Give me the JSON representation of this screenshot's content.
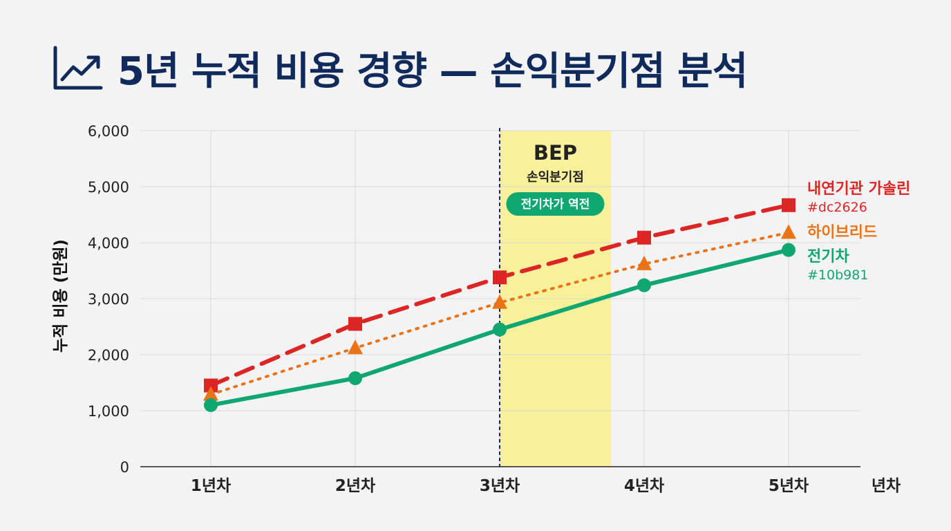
{
  "title": "5년 누적 비용 경향 — 손익분기점 분석",
  "title_icon": "trend-up-chart-icon",
  "chart_data": {
    "type": "line",
    "ylabel": "누적 비용 (만원)",
    "xunit": "년차",
    "categories": [
      "1년차",
      "2년차",
      "3년차",
      "4년차",
      "5년차"
    ],
    "ylim": [
      0,
      6000
    ],
    "yticks": [
      0,
      1000,
      2000,
      3000,
      4000,
      5000,
      6000
    ],
    "ytick_labels": [
      "0",
      "1,000",
      "2,000",
      "3,000",
      "4,000",
      "5,000",
      "6,000"
    ],
    "grid": true,
    "series": [
      {
        "key": "gas",
        "name": "내연기관 가솔린",
        "hex_label": "#dc2626",
        "color": "#dc2626",
        "line_style": "dashed",
        "marker": "square",
        "values": [
          1450,
          2550,
          3380,
          4090,
          4670
        ]
      },
      {
        "key": "hybrid",
        "name": "하이브리드",
        "hex_label": "",
        "color": "#ea7317",
        "line_style": "dotted",
        "marker": "triangle",
        "values": [
          1290,
          2120,
          2930,
          3620,
          4180
        ]
      },
      {
        "key": "ev",
        "name": "전기차",
        "hex_label": "#10b981",
        "color": "#10a672",
        "line_style": "solid",
        "marker": "circle",
        "values": [
          1100,
          1580,
          2450,
          3240,
          3870
        ]
      }
    ],
    "annotation": {
      "title": "BEP",
      "subtitle": "손익분기점",
      "badge": "전기차가 역전",
      "x_start": 3,
      "x_end": 3.77,
      "highlight_color": "#f8f09a",
      "badge_color": "#10a672"
    }
  }
}
